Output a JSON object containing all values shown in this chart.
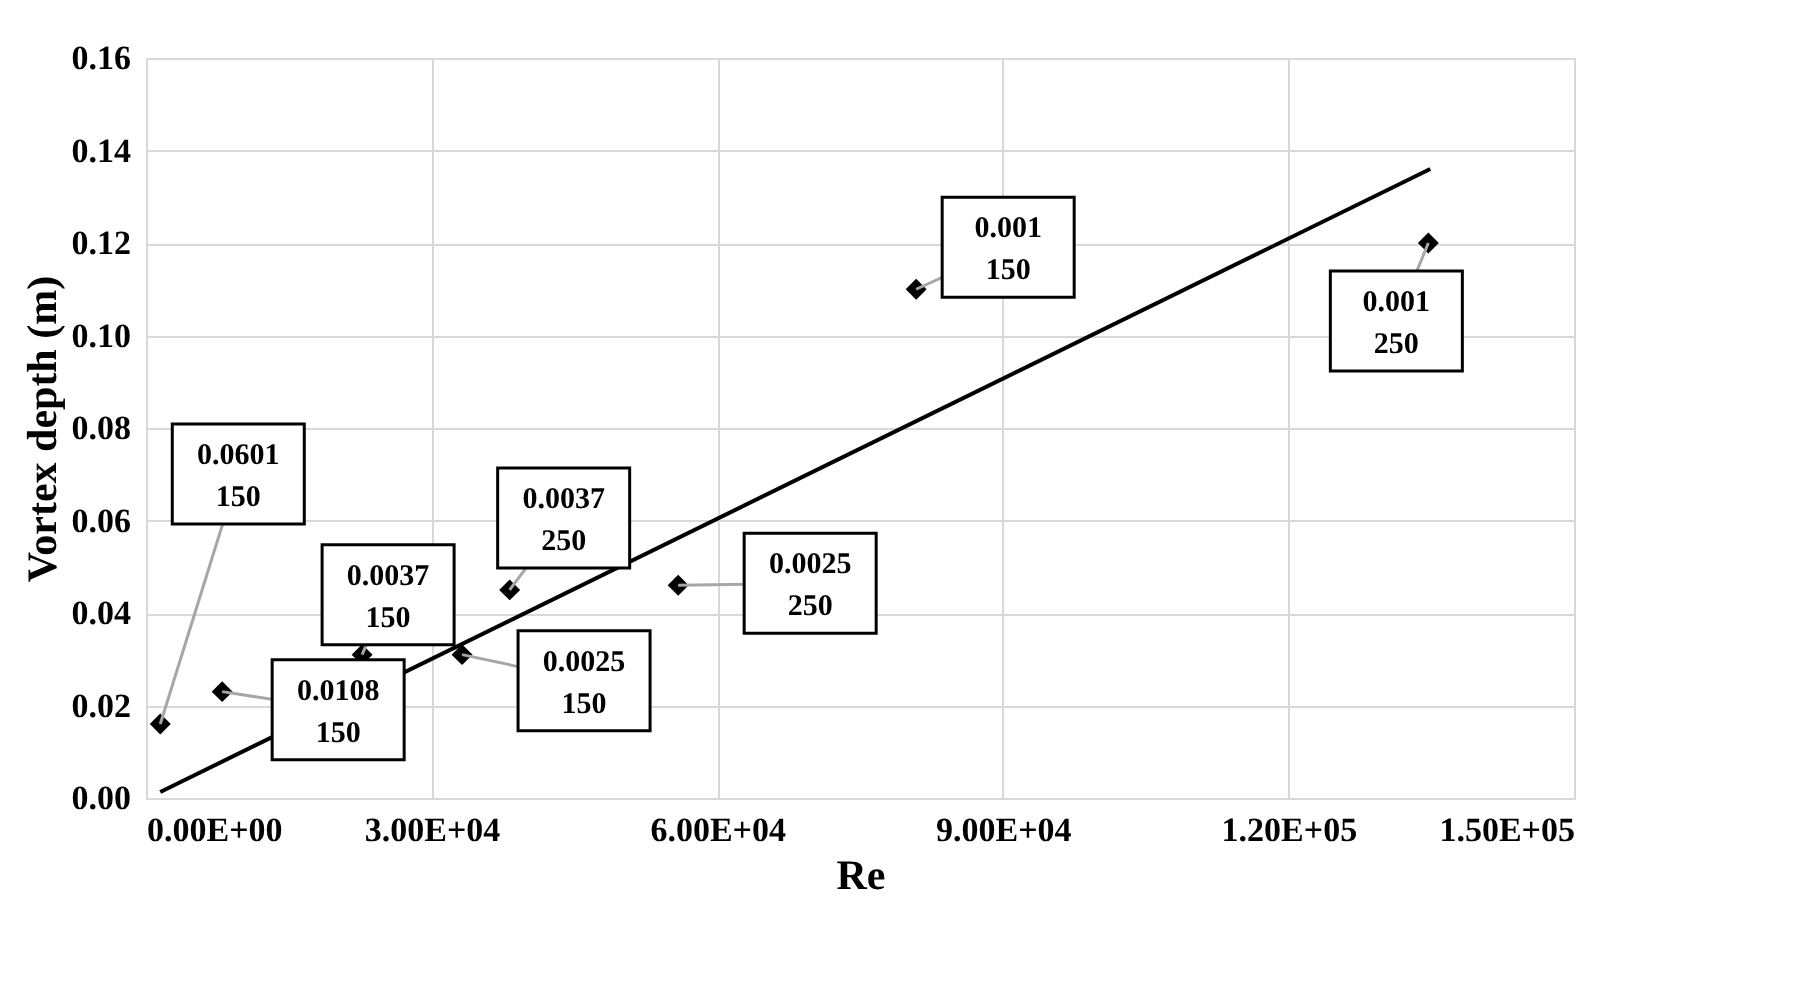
{
  "chart_data": {
    "type": "scatter",
    "xlabel": "Re",
    "ylabel": "Vortex depth (m)",
    "series": [
      {
        "color": "#000000",
        "marker": "diamond",
        "x": [
          1500,
          8000,
          22700,
          33200,
          38200,
          55900,
          80900,
          134700
        ],
        "values": [
          0.016,
          0.023,
          0.031,
          0.031,
          0.045,
          0.046,
          0.11,
          0.12
        ]
      },
      {
        "type": "line",
        "color": "#000000",
        "line_style": "solid",
        "x": [
          1500,
          134900
        ],
        "values": [
          0.0013,
          0.136
        ]
      }
    ],
    "annotations": [
      {
        "text": "0.0601\n150",
        "x": 1500,
        "y": 0.016
      },
      {
        "text": "0.0108\n150",
        "x": 8000,
        "y": 0.023
      },
      {
        "text": "0.0037\n150",
        "x": 22700,
        "y": 0.031
      },
      {
        "text": "0.0025\n150",
        "x": 33200,
        "y": 0.031
      },
      {
        "text": "0.0037\n250",
        "x": 38200,
        "y": 0.045
      },
      {
        "text": "0.0025\n250",
        "x": 55900,
        "y": 0.046
      },
      {
        "text": "0.001\n150",
        "x": 80900,
        "y": 0.11
      },
      {
        "text": "0.001\n250",
        "x": 134700,
        "y": 0.12
      }
    ],
    "xlim": [
      0,
      150000
    ],
    "xticks": [
      {
        "value": 0,
        "label": "0.00E+00"
      },
      {
        "value": 30000,
        "label": "3.00E+04"
      },
      {
        "value": 60000,
        "label": "6.00E+04"
      },
      {
        "value": 90000,
        "label": "9.00E+04"
      },
      {
        "value": 120000,
        "label": "1.20E+05"
      },
      {
        "value": 150000,
        "label": "1.50E+05"
      }
    ],
    "ylim": [
      0,
      0.16
    ],
    "yticks": [
      {
        "value": 0,
        "label": "0.00"
      },
      {
        "value": 0.02,
        "label": "0.02"
      },
      {
        "value": 0.04,
        "label": "0.04"
      },
      {
        "value": 0.06,
        "label": "0.06"
      },
      {
        "value": 0.08,
        "label": "0.08"
      },
      {
        "value": 0.1,
        "label": "0.10"
      },
      {
        "value": 0.12,
        "label": "0.12"
      },
      {
        "value": 0.14,
        "label": "0.14"
      },
      {
        "value": 0.16,
        "label": "0.16"
      }
    ],
    "grid": true
  }
}
